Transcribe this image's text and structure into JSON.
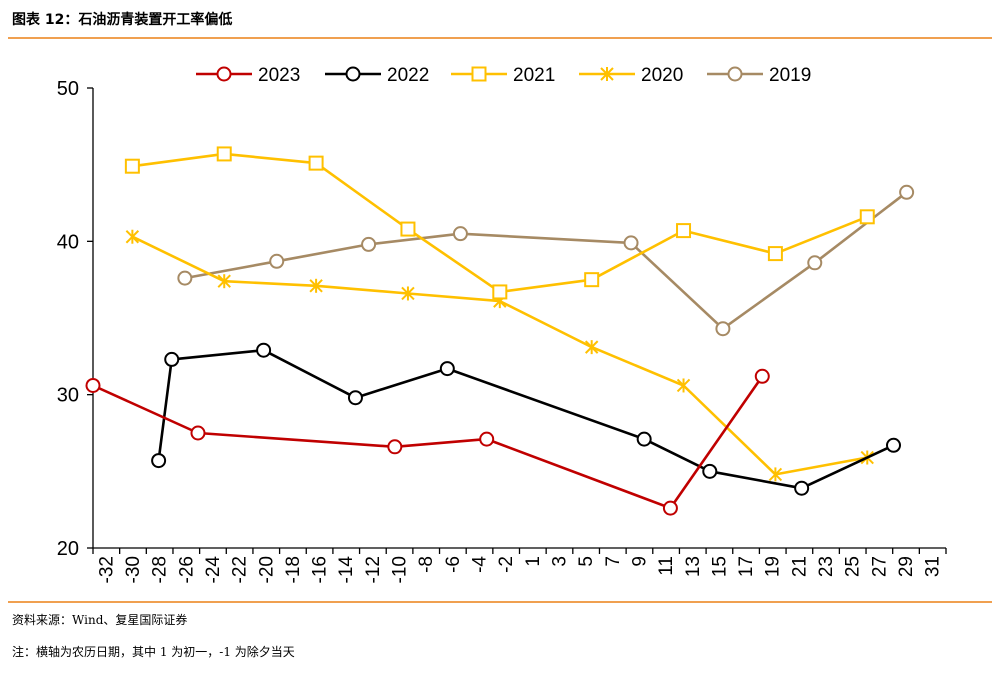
{
  "header": {
    "title": "图表 12：石油沥青装置开工率偏低"
  },
  "footer": {
    "source": "资料来源：Wind、复星国际证券",
    "note": "注：横轴为农历日期，其中 1 为初一，-1 为除夕当天"
  },
  "chart_data": {
    "type": "line",
    "title": "",
    "xlabel": "",
    "ylabel": "",
    "xlim": [
      -33,
      32
    ],
    "ylim": [
      20,
      50
    ],
    "y_ticks": [
      20,
      30,
      40,
      50
    ],
    "x_ticks": [
      "-32",
      "-30",
      "-28",
      "-26",
      "-24",
      "-22",
      "-20",
      "-18",
      "-16",
      "-14",
      "-12",
      "-10",
      "-8",
      "-6",
      "-4",
      "-2",
      "1",
      "3",
      "5",
      "7",
      "9",
      "11",
      "13",
      "15",
      "17",
      "19",
      "21",
      "23",
      "25",
      "27",
      "29",
      "31"
    ],
    "legend_position": "top",
    "series": [
      {
        "name": "2023",
        "color": "#c00000",
        "marker": "circle",
        "points": [
          [
            -33,
            30.6
          ],
          [
            -25,
            27.5
          ],
          [
            -10,
            26.6
          ],
          [
            -3,
            27.1
          ],
          [
            11,
            22.6
          ],
          [
            18,
            31.2
          ]
        ]
      },
      {
        "name": "2022",
        "color": "#000000",
        "marker": "circle",
        "points": [
          [
            -28,
            25.7
          ],
          [
            -27,
            32.3
          ],
          [
            -20,
            32.9
          ],
          [
            -13,
            29.8
          ],
          [
            -6,
            31.7
          ],
          [
            9,
            27.1
          ],
          [
            14,
            25.0
          ],
          [
            21,
            23.9
          ],
          [
            28,
            26.7
          ]
        ]
      },
      {
        "name": "2021",
        "color": "#ffc000",
        "marker": "square",
        "points": [
          [
            -30,
            44.9
          ],
          [
            -23,
            45.7
          ],
          [
            -16,
            45.1
          ],
          [
            -9,
            40.8
          ],
          [
            -2,
            36.7
          ],
          [
            5,
            37.5
          ],
          [
            12,
            40.7
          ],
          [
            19,
            39.2
          ],
          [
            26,
            41.6
          ]
        ]
      },
      {
        "name": "2020",
        "color": "#ffc000",
        "marker": "star",
        "points": [
          [
            -30,
            40.3
          ],
          [
            -23,
            37.4
          ],
          [
            -16,
            37.1
          ],
          [
            -9,
            36.6
          ],
          [
            -2,
            36.1
          ],
          [
            5,
            33.1
          ],
          [
            12,
            30.6
          ],
          [
            19,
            24.8
          ],
          [
            26,
            25.9
          ]
        ]
      },
      {
        "name": "2019",
        "color": "#a68a64",
        "marker": "circle",
        "points": [
          [
            -26,
            37.6
          ],
          [
            -19,
            38.7
          ],
          [
            -12,
            39.8
          ],
          [
            -5,
            40.5
          ],
          [
            8,
            39.9
          ],
          [
            15,
            34.3
          ],
          [
            22,
            38.6
          ],
          [
            29,
            43.2
          ]
        ]
      }
    ]
  }
}
